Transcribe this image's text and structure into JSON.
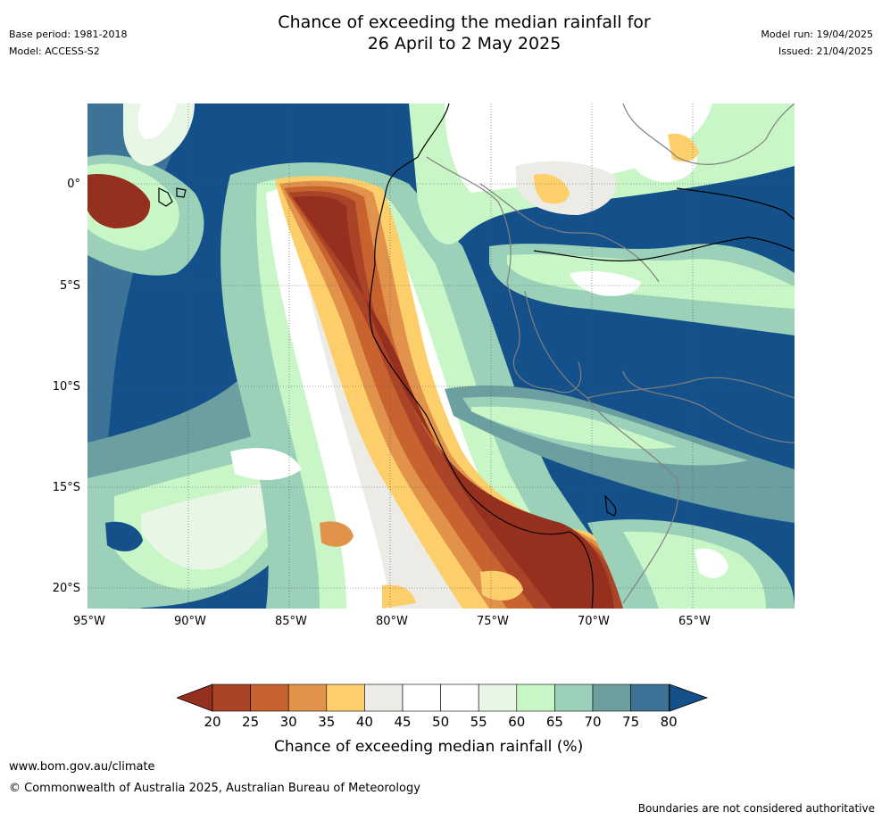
{
  "header": {
    "base_period": "Base period: 1981-2018",
    "model": "Model: ACCESS-S2",
    "title_line1": "Chance of exceeding the median rainfall for",
    "title_line2": "26 April to 2 May 2025",
    "model_run": "Model run: 19/04/2025",
    "issued": "Issued: 21/04/2025"
  },
  "map": {
    "lon_ticks": [
      "95°W",
      "90°W",
      "85°W",
      "80°W",
      "75°W",
      "70°W",
      "65°W"
    ],
    "lat_ticks": [
      "0°",
      "5°S",
      "10°S",
      "15°S",
      "20°S"
    ],
    "lon_values": [
      -95,
      -90,
      -85,
      -80,
      -75,
      -70,
      -65
    ],
    "lat_values": [
      0,
      -5,
      -10,
      -15,
      -20
    ],
    "lon_range": [
      -95,
      -60
    ],
    "lat_range": [
      -21,
      4
    ],
    "gridlines": true,
    "dominant_field": "above-median (blue) over ocean; below-median (brown) along Pacific coast of Ecuador/Peru and over the Galápagos",
    "colors": {
      "ocean_high": "#14508a",
      "c75": "#3d7396",
      "c70": "#6ca0a0",
      "c65": "#9ad1b8",
      "c60": "#c8f6c6",
      "c55": "#e8f6e6",
      "c45": "#ffffff",
      "c40": "#ecebe6",
      "c35": "#fdcf6b",
      "c30": "#e2934b",
      "c25": "#c8622f",
      "c20": "#ab4328",
      "c_low": "#96301e",
      "coast": "#000000",
      "border": "#808080"
    }
  },
  "colorbar": {
    "labels": [
      "20",
      "25",
      "30",
      "35",
      "40",
      "45",
      "50",
      "55",
      "60",
      "65",
      "70",
      "75",
      "80"
    ],
    "colors": [
      "#ab4328",
      "#c8622f",
      "#e2934b",
      "#fdcf6b",
      "#ecebe6",
      "#ffffff",
      "#ffffff",
      "#e8f6e6",
      "#c8f6c6",
      "#9ad1b8",
      "#6ca0a0",
      "#3d7396"
    ],
    "low_extend_color": "#96301e",
    "high_extend_color": "#14508a",
    "title": "Chance of exceeding median rainfall (%)"
  },
  "footer": {
    "url": "www.bom.gov.au/climate",
    "copyright": "© Commonwealth of Australia 2025, Australian Bureau of Meteorology",
    "disclaimer": "Boundaries are not considered authoritative"
  }
}
